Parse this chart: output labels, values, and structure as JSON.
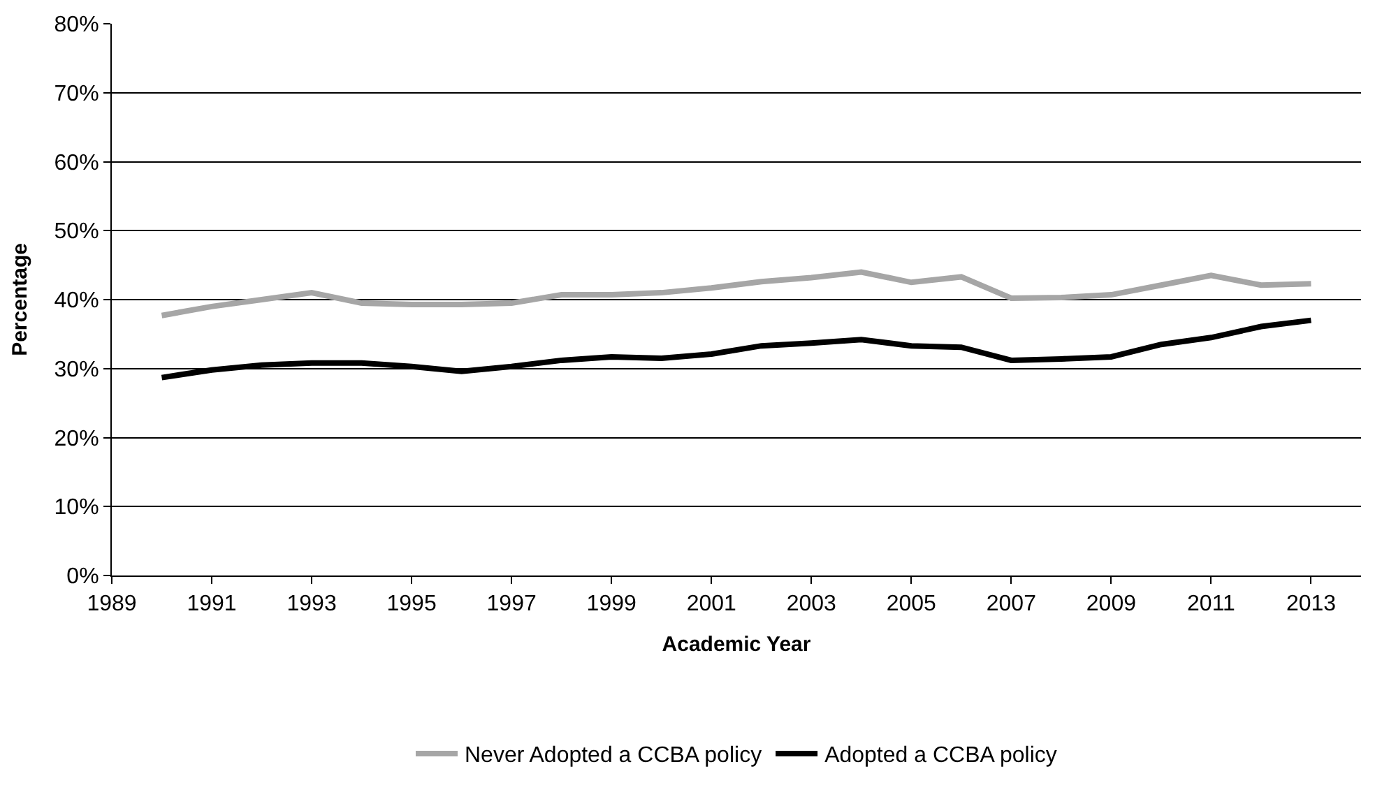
{
  "chart_data": {
    "type": "line",
    "xlabel": "Academic Year",
    "ylabel": "Percentage",
    "x": [
      1990,
      1991,
      1992,
      1993,
      1994,
      1995,
      1996,
      1997,
      1998,
      1999,
      2000,
      2001,
      2002,
      2003,
      2004,
      2005,
      2006,
      2007,
      2008,
      2009,
      2010,
      2011,
      2012,
      2013
    ],
    "series": [
      {
        "name": "Never Adopted a CCBA policy",
        "color": "#a6a6a6",
        "values": [
          37.7,
          39.0,
          40.0,
          41.0,
          39.5,
          39.3,
          39.3,
          39.5,
          40.7,
          40.7,
          41.0,
          41.7,
          42.6,
          43.2,
          44.0,
          42.5,
          43.3,
          40.2,
          40.3,
          40.7,
          42.1,
          43.5,
          42.1,
          42.3
        ]
      },
      {
        "name": "Adopted a CCBA policy",
        "color": "#000000",
        "values": [
          28.7,
          29.8,
          30.5,
          30.8,
          30.8,
          30.3,
          29.6,
          30.3,
          31.2,
          31.7,
          31.5,
          32.1,
          33.3,
          33.7,
          34.2,
          33.3,
          33.1,
          31.2,
          31.4,
          31.7,
          33.5,
          34.5,
          36.1,
          37.0
        ]
      }
    ],
    "xlim": [
      1989,
      2014
    ],
    "xticks": [
      1989,
      1991,
      1993,
      1995,
      1997,
      1999,
      2001,
      2003,
      2005,
      2007,
      2009,
      2011,
      2013
    ],
    "ylim": [
      0,
      80
    ],
    "yticks": [
      {
        "value": 0,
        "label": "0%"
      },
      {
        "value": 10,
        "label": "10%"
      },
      {
        "value": 20,
        "label": "20%"
      },
      {
        "value": 30,
        "label": "30%"
      },
      {
        "value": 40,
        "label": "40%"
      },
      {
        "value": 50,
        "label": "50%"
      },
      {
        "value": 60,
        "label": "60%"
      },
      {
        "value": 70,
        "label": "70%"
      },
      {
        "value": 80,
        "label": "80%"
      }
    ],
    "grid": "y",
    "legend": "bottom",
    "marker": "none",
    "line_style": "solid"
  }
}
